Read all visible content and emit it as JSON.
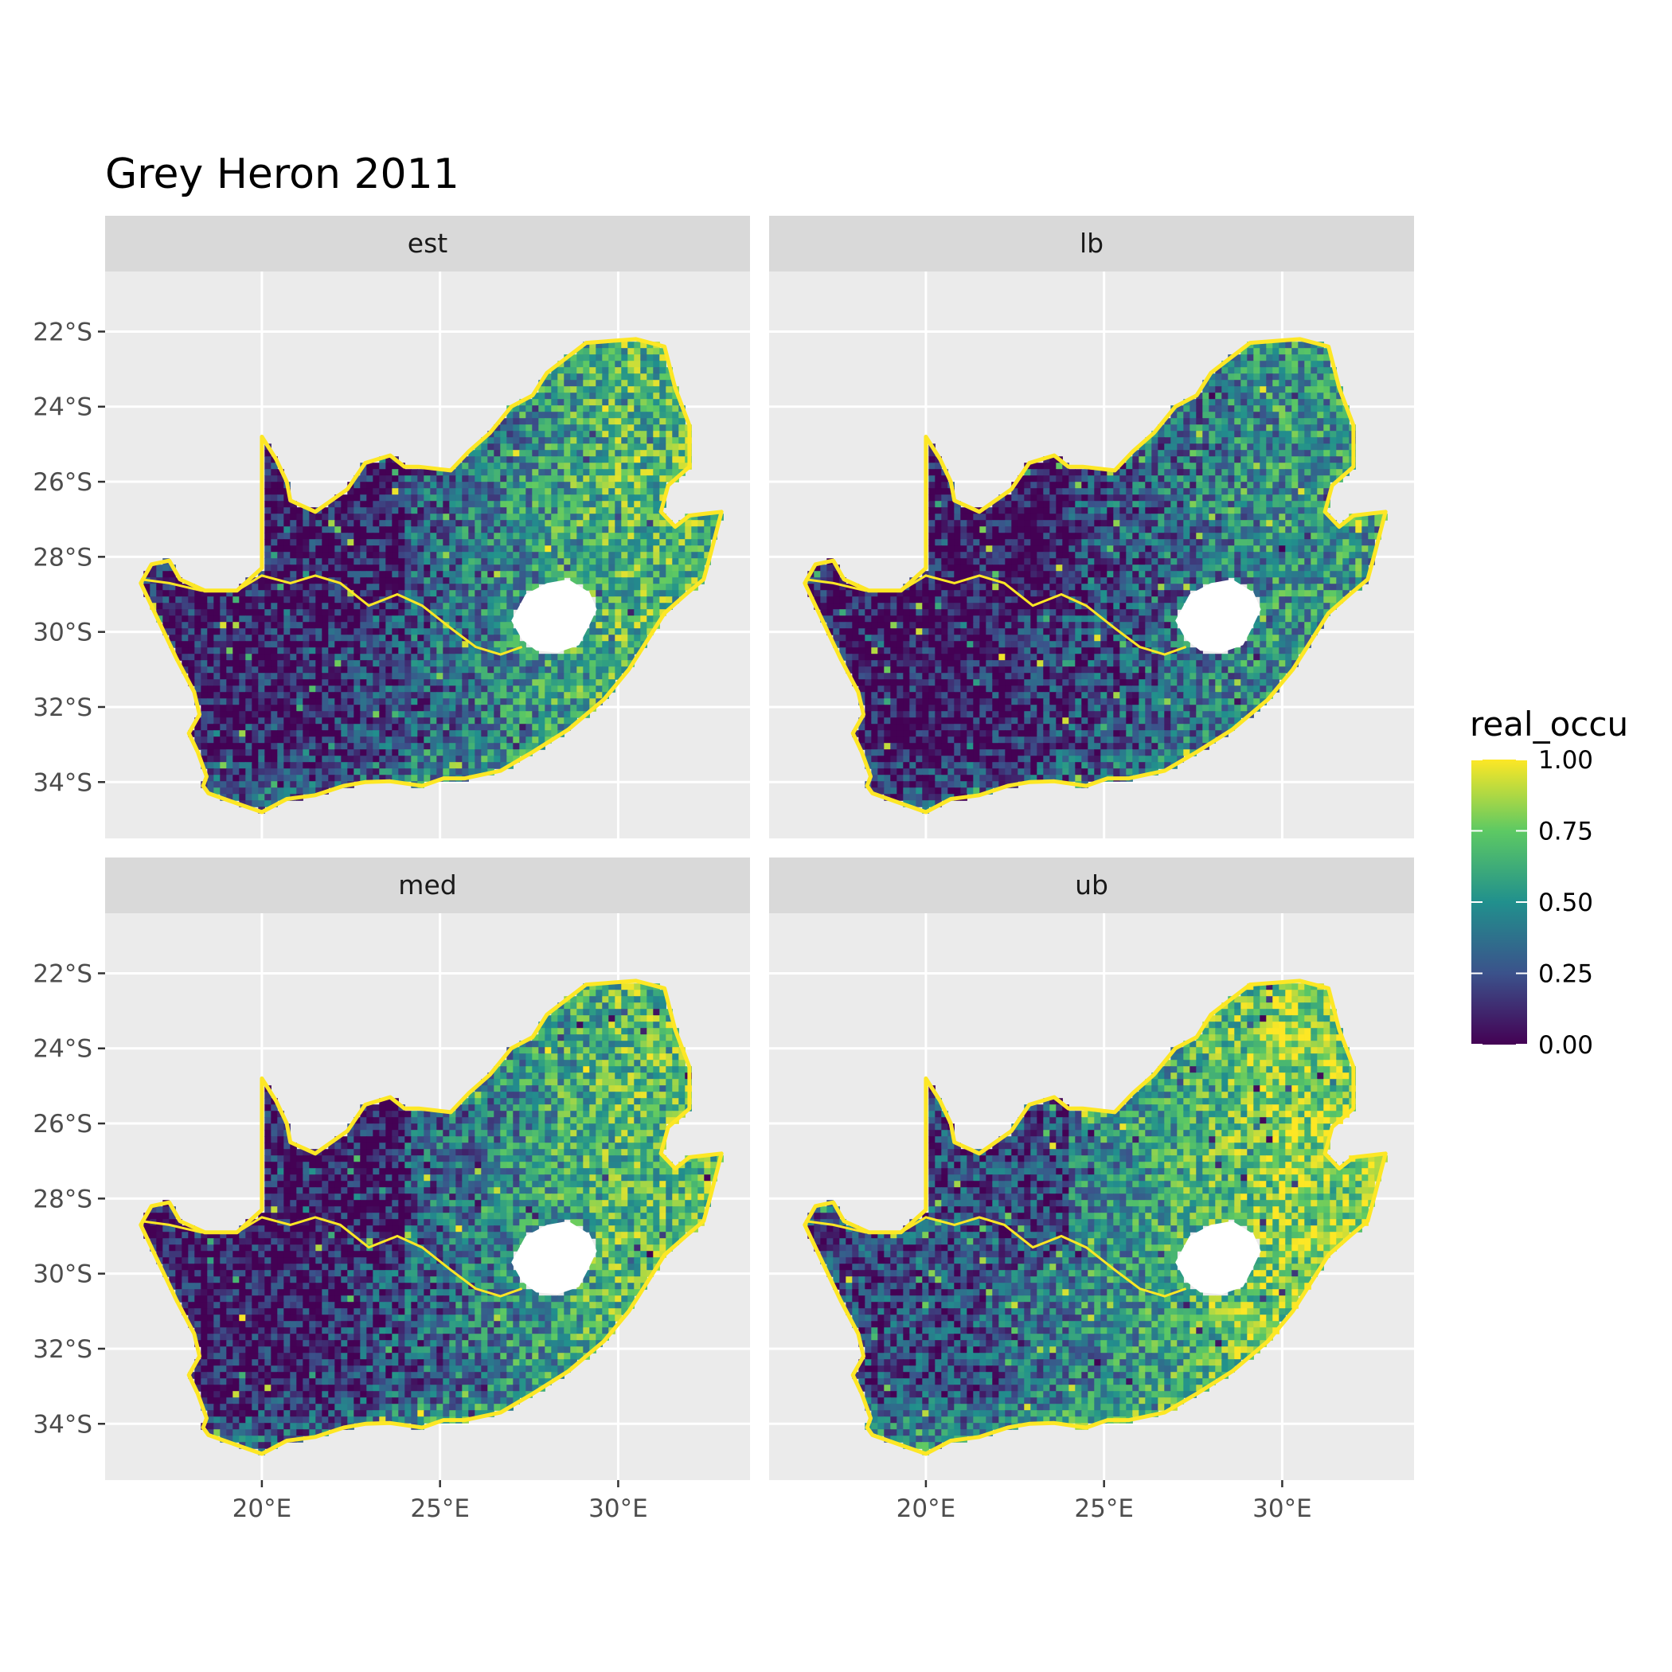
{
  "title": "Grey Heron 2011",
  "panels": [
    {
      "label": "est",
      "palette": "mid",
      "dry_level": 0.06,
      "wet_level": 0.78,
      "noise": 0.3
    },
    {
      "label": "lb",
      "palette": "low",
      "dry_level": 0.02,
      "wet_level": 0.6,
      "noise": 0.3
    },
    {
      "label": "med",
      "palette": "mid",
      "dry_level": 0.05,
      "wet_level": 0.8,
      "noise": 0.3
    },
    {
      "label": "ub",
      "palette": "high",
      "dry_level": 0.22,
      "wet_level": 0.9,
      "noise": 0.28
    }
  ],
  "axes": {
    "x_ticks": [
      "20°E",
      "25°E",
      "30°E"
    ],
    "y_ticks": [
      "22°S",
      "24°S",
      "26°S",
      "28°S",
      "30°S",
      "32°S",
      "34°S"
    ],
    "x_range": [
      15.6,
      33.7
    ],
    "y_range": [
      -35.5,
      -20.4
    ]
  },
  "legend": {
    "title": "real_occu",
    "labels": [
      "1.00",
      "0.75",
      "0.50",
      "0.25",
      "0.00"
    ],
    "colormap": "viridis",
    "colors": [
      "#440154",
      "#3b528b",
      "#21908d",
      "#5dc963",
      "#fde725"
    ]
  },
  "style": {
    "panel_background": "#ebebeb",
    "strip_background": "#d9d9d9",
    "grid_color": "#ffffff",
    "coast_color": "#fde725",
    "lesotho_fill": "#ffffff"
  }
}
